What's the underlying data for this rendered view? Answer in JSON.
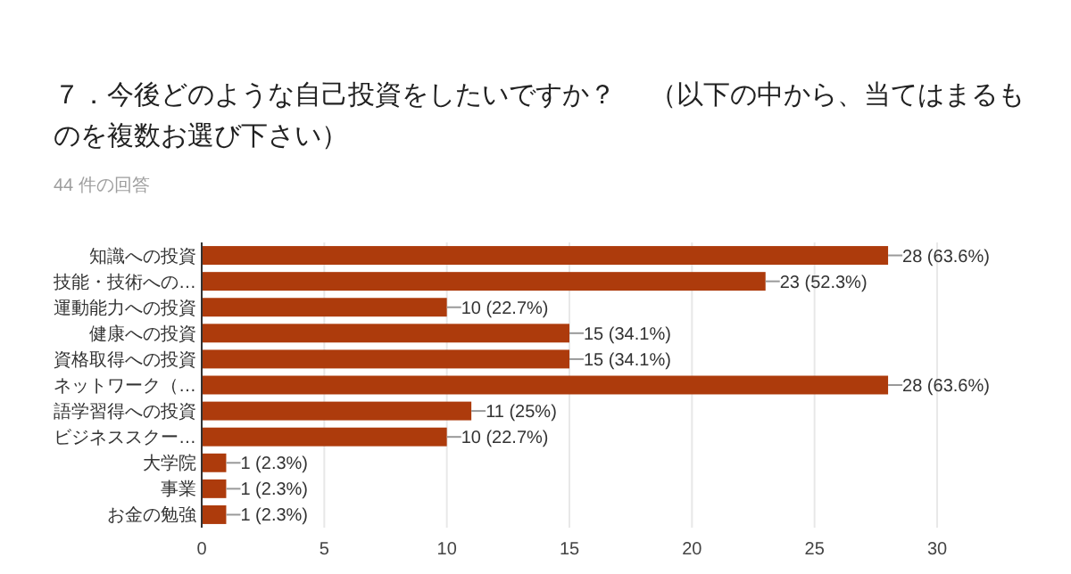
{
  "chart_data": {
    "type": "bar",
    "orientation": "horizontal",
    "title": "７．今後どのような自己投資をしたいですか？　 （以下の中から、当てはまるものを複数お選び下さい）",
    "subtitle": "44 件の回答",
    "categories": [
      "知識への投資",
      "技能・技術への…",
      "運動能力への投資",
      "健康への投資",
      "資格取得への投資",
      "ネットワーク（…",
      "語学習得への投資",
      "ビジネススクー…",
      "大学院",
      "事業",
      "お金の勉強"
    ],
    "values": [
      28,
      23,
      10,
      15,
      15,
      28,
      11,
      10,
      1,
      1,
      1
    ],
    "value_labels": [
      "28 (63.6%)",
      "23 (52.3%)",
      "10 (22.7%)",
      "15 (34.1%)",
      "15 (34.1%)",
      "28 (63.6%)",
      "11 (25%)",
      "10 (22.7%)",
      "1 (2.3%)",
      "1 (2.3%)",
      "1 (2.3%)"
    ],
    "color": "#ad3b0c",
    "xlim": [
      0,
      30
    ],
    "xticks": [
      0,
      5,
      10,
      15,
      20,
      25,
      30
    ],
    "grid": "x"
  }
}
